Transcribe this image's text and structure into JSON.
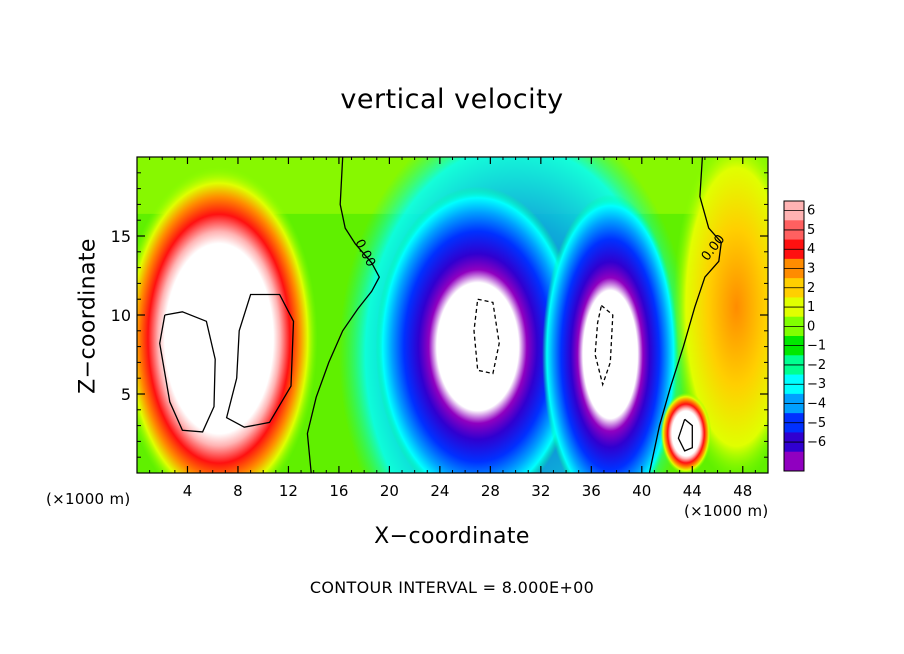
{
  "chart_data": {
    "type": "heatmap",
    "title": "vertical velocity",
    "xlabel": "X−coordinate",
    "ylabel": "Z−coordinate",
    "x_unit_label_left": "(×1000 m)",
    "x_unit_label_right": "(×1000 m)",
    "xlim": [
      0,
      50
    ],
    "ylim": [
      0,
      20
    ],
    "x_ticks": [
      4,
      8,
      12,
      16,
      20,
      24,
      28,
      32,
      36,
      40,
      44,
      48
    ],
    "x_tick_labels": [
      "4",
      "8",
      "12",
      "16",
      "20",
      "24",
      "28",
      "32",
      "36",
      "40",
      "44",
      "48"
    ],
    "y_ticks": [
      5,
      10,
      15
    ],
    "y_tick_labels": [
      "5",
      "10",
      "15"
    ],
    "colorbar": {
      "levels": [
        6,
        5,
        4,
        3,
        2,
        1,
        0,
        -1,
        -2,
        -3,
        -4,
        -5,
        -6
      ],
      "labels": [
        "6",
        "5",
        "4",
        "3",
        "2",
        "1",
        "0",
        "−1",
        "−2",
        "−3",
        "−4",
        "−5",
        "−6"
      ],
      "colors": [
        "#ffb3b3",
        "#ff6060",
        "#ff1010",
        "#ff8c00",
        "#ffcf00",
        "#e0ff00",
        "#80ff00",
        "#00e800",
        "#00ff90",
        "#00ffff",
        "#00a0ff",
        "#0030ff",
        "#3000d0",
        "#9000c0"
      ]
    },
    "contour_label": "0.00",
    "annotation": "CONTOUR INTERVAL = 8.000E+00",
    "features": [
      {
        "kind": "updraft",
        "x_center": 6.5,
        "z_center": 8.5,
        "x_range": [
          0.5,
          13
        ],
        "z_range": [
          0,
          17.5
        ],
        "max_value": "> 6"
      },
      {
        "kind": "downdraft",
        "x_center": 27,
        "z_center": 8,
        "x_range": [
          21,
          33
        ],
        "z_range": [
          0,
          15
        ],
        "min_value": "< -6"
      },
      {
        "kind": "downdraft",
        "x_center": 37.5,
        "z_center": 7.5,
        "x_range": [
          34,
          42
        ],
        "z_range": [
          0,
          15
        ],
        "min_value": "< -6"
      },
      {
        "kind": "updraft",
        "x_center": 43.5,
        "z_center": 2.5,
        "x_range": [
          42,
          45.5
        ],
        "z_range": [
          0.5,
          5
        ],
        "max_value": "> 6"
      }
    ]
  }
}
